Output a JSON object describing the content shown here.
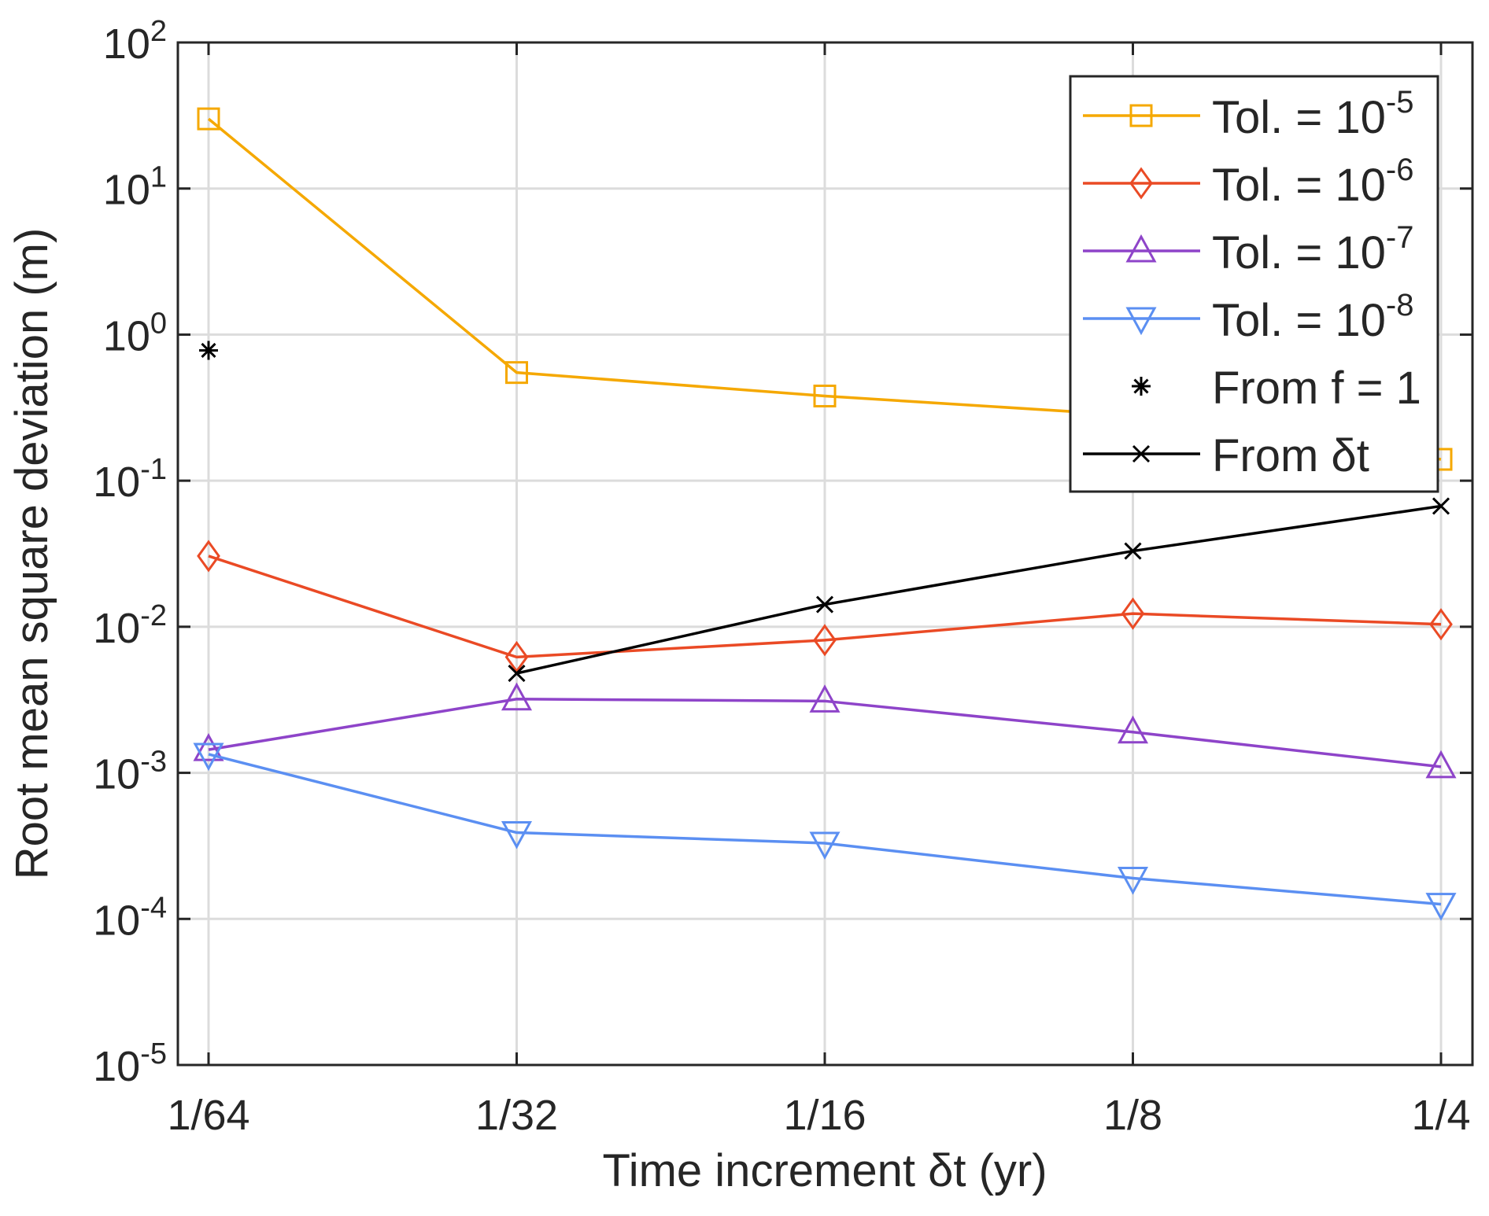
{
  "chart_data": {
    "type": "line",
    "xlabel": "Time increment δt (yr)",
    "ylabel": "Root mean square deviation (m)",
    "x_categories": [
      "1/64",
      "1/32",
      "1/16",
      "1/8",
      "1/4"
    ],
    "y_scale": "log",
    "ylim": [
      1e-05,
      100
    ],
    "y_ticks": [
      {
        "base": "10",
        "exp": "-5"
      },
      {
        "base": "10",
        "exp": "-4"
      },
      {
        "base": "10",
        "exp": "-3"
      },
      {
        "base": "10",
        "exp": "-2"
      },
      {
        "base": "10",
        "exp": "-1"
      },
      {
        "base": "10",
        "exp": "0"
      },
      {
        "base": "10",
        "exp": "1"
      },
      {
        "base": "10",
        "exp": "2"
      }
    ],
    "grid": true,
    "legend_position": "top-right",
    "series": [
      {
        "name": "Tol. = 10",
        "exp": "-5",
        "color": "#f5a800",
        "marker": "square",
        "line": true,
        "values": [
          30,
          0.55,
          0.38,
          0.28,
          0.14
        ]
      },
      {
        "name": "Tol. = 10",
        "exp": "-6",
        "color": "#ea4a25",
        "marker": "diamond",
        "line": true,
        "values": [
          0.0305,
          0.0062,
          0.0081,
          0.0123,
          0.0104
        ]
      },
      {
        "name": "Tol. = 10",
        "exp": "-7",
        "color": "#8e44c9",
        "marker": "triangle-up",
        "line": true,
        "values": [
          0.00144,
          0.0032,
          0.0031,
          0.0019,
          0.0011
        ]
      },
      {
        "name": "Tol. = 10",
        "exp": "-8",
        "color": "#5b8ff2",
        "marker": "triangle-down",
        "line": true,
        "values": [
          0.00134,
          0.00039,
          0.00033,
          0.00019,
          0.000126
        ]
      },
      {
        "name": "From f = 1",
        "exp": "",
        "color": "#000000",
        "marker": "asterisk",
        "line": false,
        "values": [
          0.78,
          null,
          null,
          null,
          null
        ]
      },
      {
        "name": "From δt",
        "exp": "",
        "color": "#000000",
        "marker": "x",
        "line": true,
        "values": [
          null,
          0.0048,
          0.0142,
          0.033,
          0.067
        ]
      }
    ]
  }
}
